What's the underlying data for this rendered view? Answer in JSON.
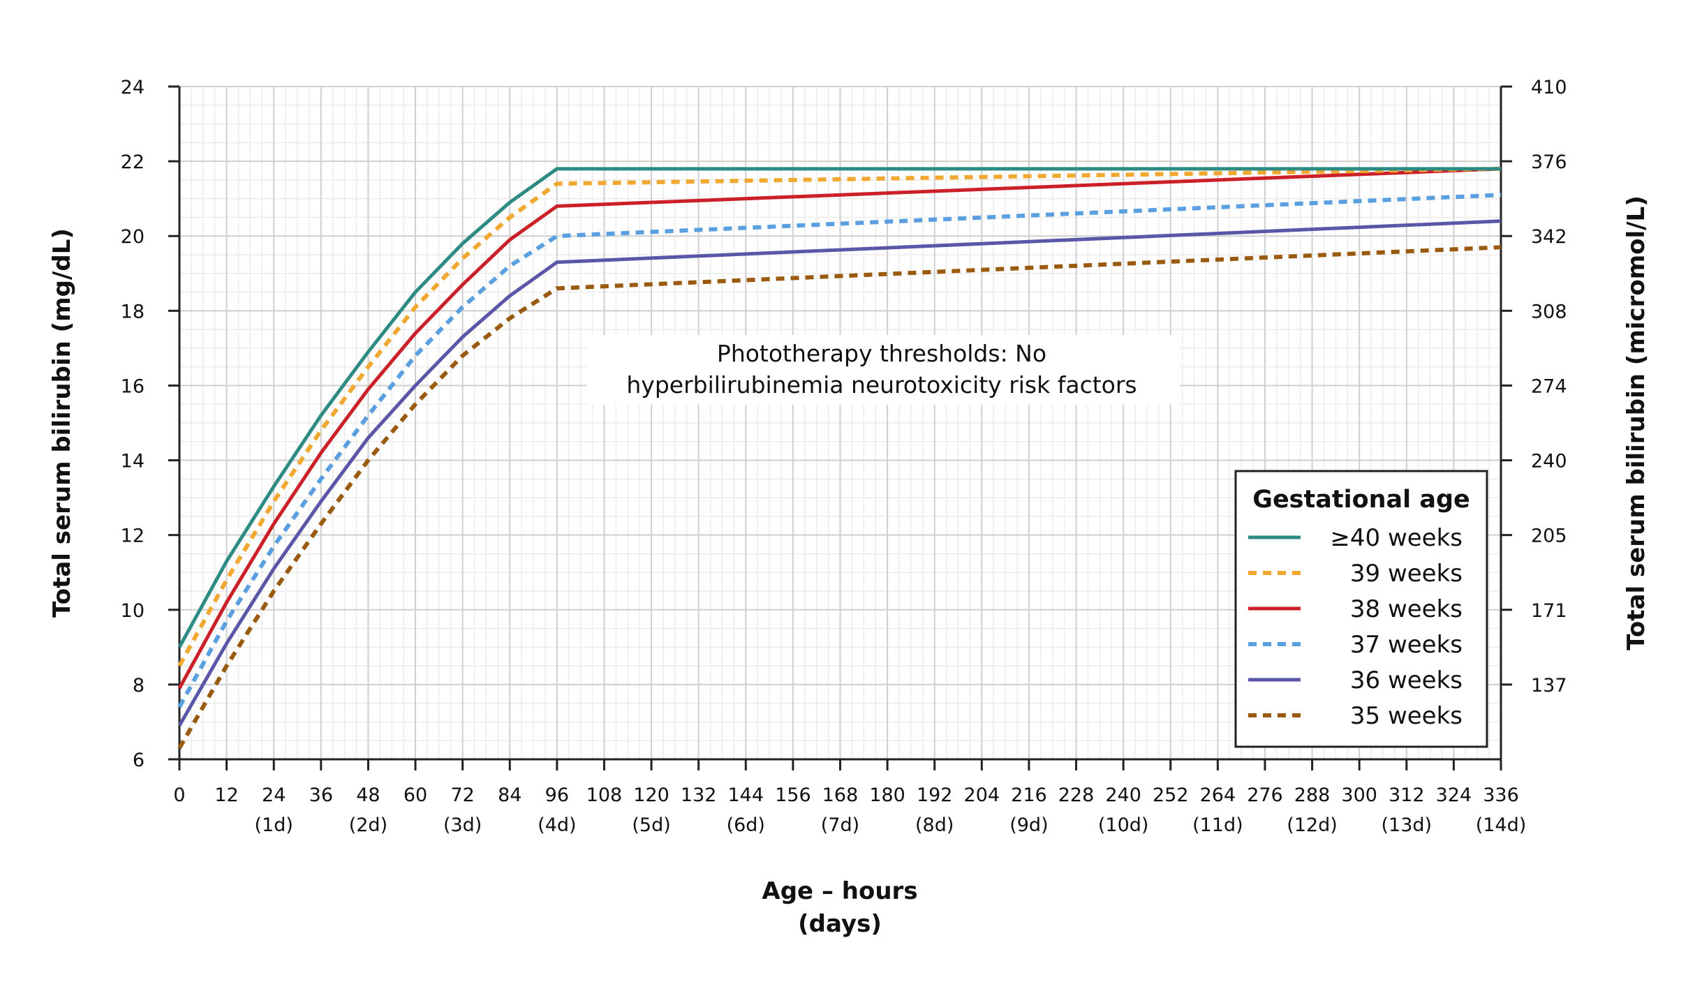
{
  "chart_data": {
    "type": "line",
    "xlabel": "Age – hours",
    "xlabel_sub": "(days)",
    "ylabel": "Total serum bilirubin (mg/dL)",
    "ylabel_right": "Total serum bilirubin (micromol/L)",
    "annotation": [
      "Phototherapy thresholds: No",
      "hyperbilirubinemia neurotoxicity risk factors"
    ],
    "xlim": [
      0,
      336
    ],
    "ylim": [
      6,
      24
    ],
    "x_ticks": [
      0,
      12,
      24,
      36,
      48,
      60,
      72,
      84,
      96,
      108,
      120,
      132,
      144,
      156,
      168,
      180,
      192,
      204,
      216,
      228,
      240,
      252,
      264,
      276,
      288,
      300,
      312,
      324,
      336
    ],
    "x_day_labels": [
      {
        "x": 24,
        "label": "(1d)"
      },
      {
        "x": 48,
        "label": "(2d)"
      },
      {
        "x": 72,
        "label": "(3d)"
      },
      {
        "x": 96,
        "label": "(4d)"
      },
      {
        "x": 120,
        "label": "(5d)"
      },
      {
        "x": 144,
        "label": "(6d)"
      },
      {
        "x": 168,
        "label": "(7d)"
      },
      {
        "x": 192,
        "label": "(8d)"
      },
      {
        "x": 216,
        "label": "(9d)"
      },
      {
        "x": 240,
        "label": "(10d)"
      },
      {
        "x": 264,
        "label": "(11d)"
      },
      {
        "x": 288,
        "label": "(12d)"
      },
      {
        "x": 312,
        "label": "(13d)"
      },
      {
        "x": 336,
        "label": "(14d)"
      }
    ],
    "y_ticks": [
      6,
      8,
      10,
      12,
      14,
      16,
      18,
      20,
      22,
      24
    ],
    "y_right_ticks": [
      {
        "y": 8,
        "label": "137"
      },
      {
        "y": 10,
        "label": "171"
      },
      {
        "y": 12,
        "label": "205"
      },
      {
        "y": 14,
        "label": "240"
      },
      {
        "y": 16,
        "label": "274"
      },
      {
        "y": 18,
        "label": "308"
      },
      {
        "y": 20,
        "label": "342"
      },
      {
        "y": 22,
        "label": "376"
      },
      {
        "y": 24,
        "label": "410"
      }
    ],
    "grid": true,
    "legend": {
      "title": "Gestational age",
      "position": "bottom-right"
    },
    "series": [
      {
        "name": "≥40 weeks",
        "color": "#2e8b84",
        "dash": "solid",
        "x": [
          0,
          12,
          24,
          36,
          48,
          60,
          72,
          84,
          96,
          336
        ],
        "y": [
          9.0,
          11.3,
          13.3,
          15.2,
          16.9,
          18.5,
          19.8,
          20.9,
          21.8,
          21.8
        ]
      },
      {
        "name": "39 weeks",
        "color": "#f0a830",
        "dash": "dashed",
        "x": [
          0,
          12,
          24,
          36,
          48,
          60,
          72,
          84,
          96,
          336
        ],
        "y": [
          8.5,
          10.8,
          12.9,
          14.8,
          16.5,
          18.1,
          19.4,
          20.5,
          21.4,
          21.8
        ]
      },
      {
        "name": "38 weeks",
        "color": "#cc2028",
        "dash": "solid",
        "x": [
          0,
          12,
          24,
          36,
          48,
          60,
          72,
          84,
          96,
          336
        ],
        "y": [
          7.9,
          10.2,
          12.3,
          14.2,
          15.9,
          17.4,
          18.7,
          19.9,
          20.8,
          21.8
        ]
      },
      {
        "name": "37 weeks",
        "color": "#5aa0e0",
        "dash": "dashed",
        "x": [
          0,
          12,
          24,
          36,
          48,
          60,
          72,
          84,
          96,
          336
        ],
        "y": [
          7.4,
          9.7,
          11.7,
          13.5,
          15.2,
          16.8,
          18.1,
          19.2,
          20.0,
          21.1
        ]
      },
      {
        "name": "36 weeks",
        "color": "#5a56a8",
        "dash": "solid",
        "x": [
          0,
          12,
          24,
          36,
          48,
          60,
          72,
          84,
          96,
          336
        ],
        "y": [
          6.9,
          9.1,
          11.1,
          12.9,
          14.6,
          16.0,
          17.3,
          18.4,
          19.3,
          20.4
        ]
      },
      {
        "name": "35 weeks",
        "color": "#9a5a10",
        "dash": "dashed",
        "x": [
          0,
          12,
          24,
          36,
          48,
          60,
          72,
          84,
          96,
          336
        ],
        "y": [
          6.3,
          8.5,
          10.5,
          12.3,
          14.0,
          15.5,
          16.8,
          17.8,
          18.6,
          19.7
        ]
      }
    ]
  }
}
